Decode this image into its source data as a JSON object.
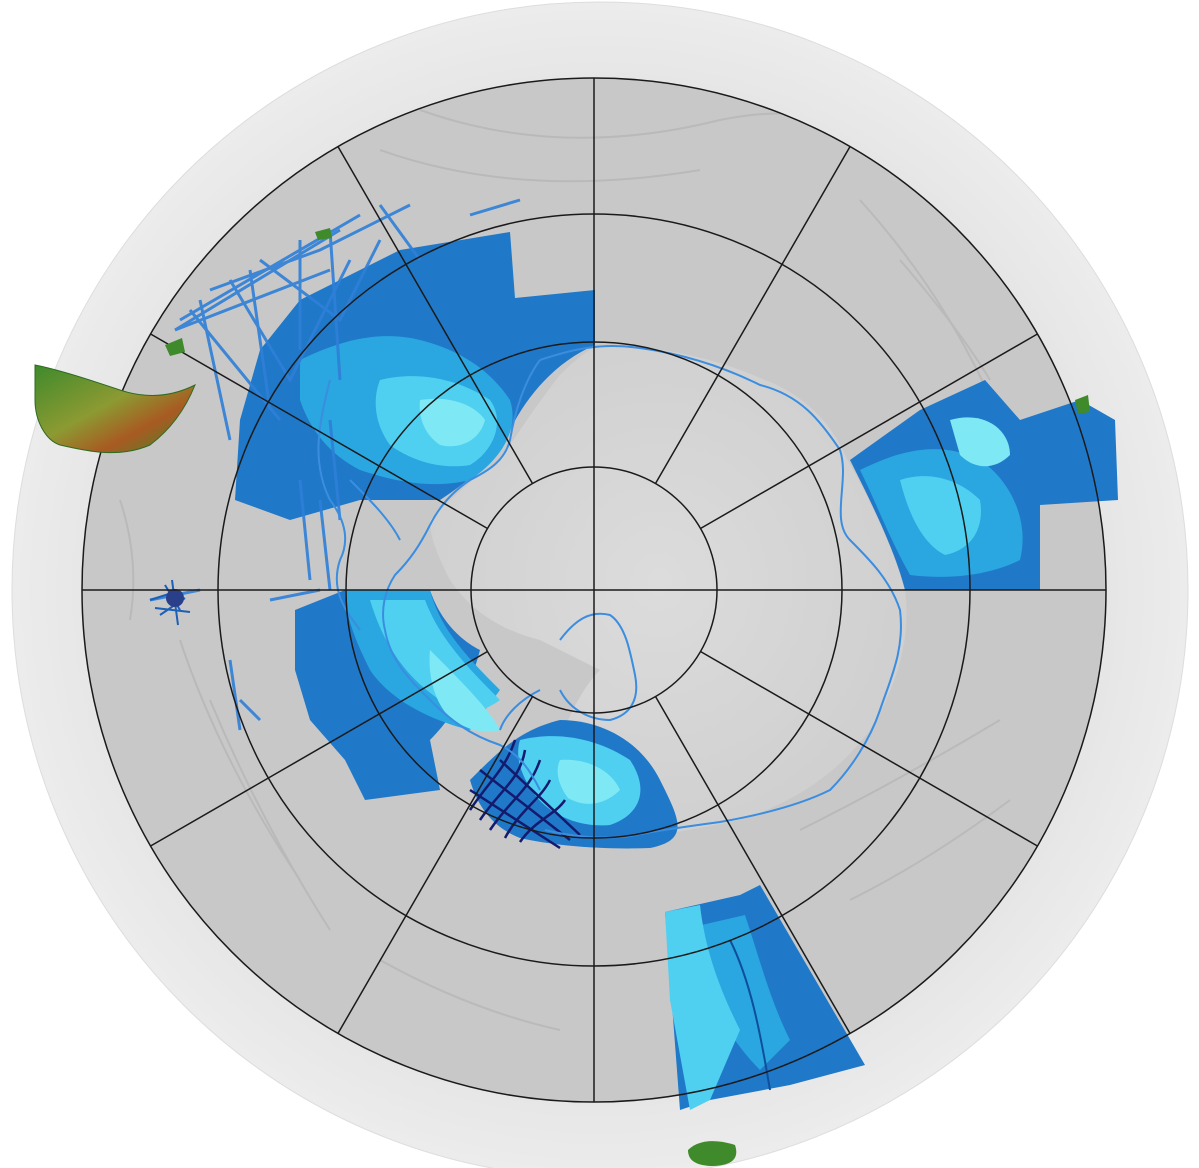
{
  "map": {
    "projection": "polar-stereographic-south",
    "colors": {
      "background": "#ffffff",
      "outer_globe": "#e6e6e6",
      "seafloor_grid_area": "#c9c9c9",
      "antarctic_continent": "#d4d4d4",
      "graticule": "#1a1a1a",
      "coastline": "#3b8de0",
      "bathy_deep": "#1f78c8",
      "bathy_mid": "#2aa6e0",
      "bathy_shallow": "#4fd0f0",
      "bathy_very_shallow": "#7fe8f5",
      "survey_tracks": "#2f7fd8",
      "dense_tracks_dark": "#141a6e",
      "land_green": "#3f8a2a",
      "land_high": "#b04a1a"
    },
    "graticule": {
      "latitude_circles": 4,
      "meridian_spokes": 12
    },
    "datasets": [
      {
        "name": "bathymetry-compilation",
        "fill": "bathy"
      },
      {
        "name": "ship-tracklines",
        "fill": "tracks"
      }
    ]
  }
}
